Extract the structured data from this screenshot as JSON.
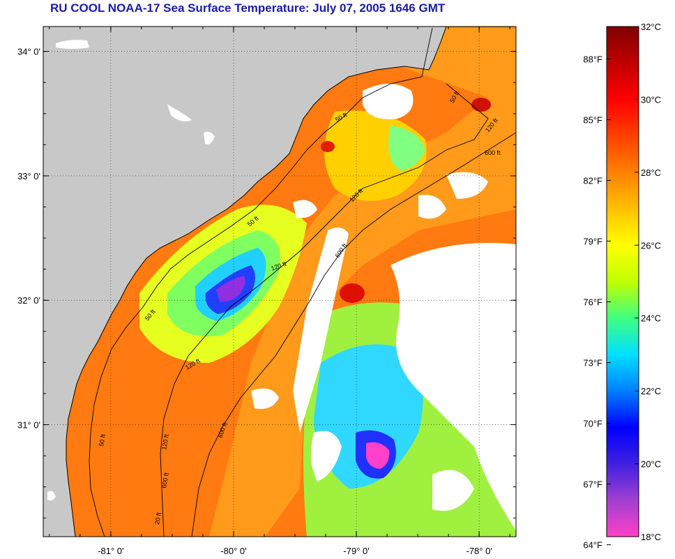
{
  "title": "RU COOL  NOAA-17  Sea Surface Temperature:  July 07, 2005 1646 GMT",
  "map": {
    "lat_labels": [
      "34° 0'",
      "33° 0'",
      "32° 0'",
      "31° 0'"
    ],
    "lat_values": [
      34,
      33,
      32,
      31
    ],
    "lon_labels": [
      "-81° 0'",
      "-80° 0'",
      "-79° 0'",
      "-78° 0'"
    ],
    "lon_values": [
      -81,
      -80,
      -79,
      -78
    ],
    "lat_range": [
      30.1,
      34.2
    ],
    "lon_range": [
      -81.55,
      -77.7
    ],
    "land_color": "#c8c8c8",
    "cloud_color": "#ffffff",
    "contour_labels": [
      "50 ft",
      "120 ft",
      "600 ft",
      "50 ft",
      "120 ft",
      "600 ft",
      "50 ft",
      "120 ft",
      "600 ft",
      "50 ft",
      "120 ft",
      "50 ft",
      "120 ft",
      "600 ft",
      "20 ft"
    ]
  },
  "colorbar": {
    "fahrenheit_labels": [
      "88°F",
      "85°F",
      "82°F",
      "79°F",
      "76°F",
      "73°F",
      "70°F",
      "67°F",
      "64°F"
    ],
    "celsius_labels": [
      "32°C",
      "30°C",
      "28°C",
      "26°C",
      "24°C",
      "22°C",
      "20°C",
      "18°C"
    ],
    "celsius_range": [
      18,
      32
    ],
    "colors": [
      "#ff40c8",
      "#a040d0",
      "#4020e0",
      "#0000ff",
      "#0080ff",
      "#00e0ff",
      "#40ff80",
      "#c0ff00",
      "#ffff00",
      "#ffc000",
      "#ff8000",
      "#ff4000",
      "#ff0000",
      "#c00000",
      "#800000"
    ]
  }
}
